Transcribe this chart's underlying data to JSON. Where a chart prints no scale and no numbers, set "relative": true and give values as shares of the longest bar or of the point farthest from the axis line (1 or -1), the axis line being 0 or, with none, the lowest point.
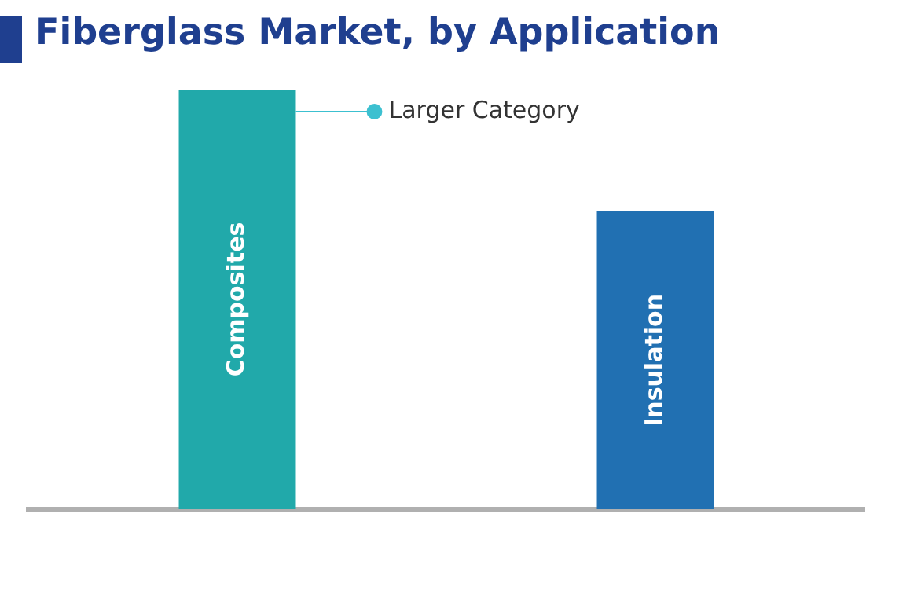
{
  "chart_data": {
    "type": "bar",
    "title": "Fiberglass Market, by Application",
    "categories": [
      "Composites",
      "Insulation"
    ],
    "relative": true,
    "colors": [
      "#21a9aa",
      "#2170b2"
    ],
    "values": [
      1,
      0.71
    ],
    "annotations": [
      "Larger Category"
    ],
    "grid": false,
    "legend": false
  }
}
